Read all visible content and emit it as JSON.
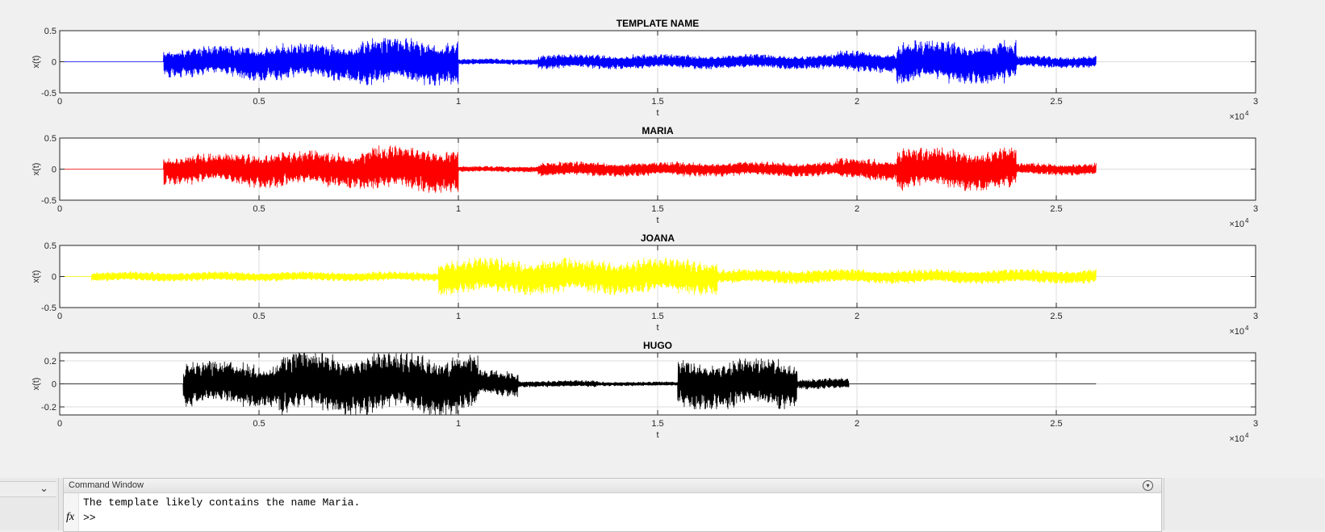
{
  "figure": {
    "colors": {
      "axes_bg": "#ffffff",
      "grid": "#dcdcdc",
      "text": "#262626"
    }
  },
  "chart_data": [
    {
      "type": "line",
      "title": "TEMPLATE NAME",
      "xlabel": "t",
      "ylabel": "x(t)",
      "xlim": [
        0,
        30000
      ],
      "ylim": [
        -0.5,
        0.5
      ],
      "xticks": [
        "0",
        "0.5",
        "1",
        "1.5",
        "2",
        "2.5",
        "3"
      ],
      "yticks": [
        "0.5",
        "0",
        "-0.5"
      ],
      "xscale_exponent_label": "×10",
      "xscale_exponent_power": "4",
      "grid": true,
      "series": [
        {
          "color": "#0000ff",
          "x_end": 26000,
          "segments": [
            {
              "x0": 0,
              "x1": 2600,
              "amplitude": 0
            },
            {
              "x0": 2600,
              "x1": 4500,
              "amplitude": 0.25
            },
            {
              "x0": 4500,
              "x1": 7500,
              "amplitude": 0.3
            },
            {
              "x0": 7500,
              "x1": 10000,
              "amplitude": 0.38
            },
            {
              "x0": 10000,
              "x1": 12000,
              "amplitude": 0.05
            },
            {
              "x0": 12000,
              "x1": 15000,
              "amplitude": 0.12
            },
            {
              "x0": 15000,
              "x1": 19500,
              "amplitude": 0.12
            },
            {
              "x0": 19500,
              "x1": 21000,
              "amplitude": 0.18
            },
            {
              "x0": 21000,
              "x1": 24000,
              "amplitude": 0.35
            },
            {
              "x0": 24000,
              "x1": 26000,
              "amplitude": 0.1
            }
          ]
        }
      ]
    },
    {
      "type": "line",
      "title": "MARIA",
      "xlabel": "t",
      "ylabel": "x(t)",
      "xlim": [
        0,
        30000
      ],
      "ylim": [
        -0.5,
        0.5
      ],
      "xticks": [
        "0",
        "0.5",
        "1",
        "1.5",
        "2",
        "2.5",
        "3"
      ],
      "yticks": [
        "0.5",
        "0",
        "-0.5"
      ],
      "xscale_exponent_label": "×10",
      "xscale_exponent_power": "4",
      "grid": true,
      "series": [
        {
          "color": "#ff0000",
          "x_end": 26000,
          "segments": [
            {
              "x0": 0,
              "x1": 2600,
              "amplitude": 0
            },
            {
              "x0": 2600,
              "x1": 4500,
              "amplitude": 0.25
            },
            {
              "x0": 4500,
              "x1": 7500,
              "amplitude": 0.3
            },
            {
              "x0": 7500,
              "x1": 10000,
              "amplitude": 0.38
            },
            {
              "x0": 10000,
              "x1": 12000,
              "amplitude": 0.05
            },
            {
              "x0": 12000,
              "x1": 15000,
              "amplitude": 0.12
            },
            {
              "x0": 15000,
              "x1": 19500,
              "amplitude": 0.12
            },
            {
              "x0": 19500,
              "x1": 21000,
              "amplitude": 0.18
            },
            {
              "x0": 21000,
              "x1": 24000,
              "amplitude": 0.35
            },
            {
              "x0": 24000,
              "x1": 26000,
              "amplitude": 0.1
            }
          ]
        }
      ]
    },
    {
      "type": "line",
      "title": "JOANA",
      "xlabel": "t",
      "ylabel": "x(t)",
      "xlim": [
        0,
        30000
      ],
      "ylim": [
        -0.5,
        0.5
      ],
      "xticks": [
        "0",
        "0.5",
        "1",
        "1.5",
        "2",
        "2.5",
        "3"
      ],
      "yticks": [
        "0.5",
        "0",
        "-0.5"
      ],
      "xscale_exponent_label": "×10",
      "xscale_exponent_power": "4",
      "grid": true,
      "series": [
        {
          "color": "#ffff00",
          "x_end": 26000,
          "segments": [
            {
              "x0": 0,
              "x1": 800,
              "amplitude": 0
            },
            {
              "x0": 800,
              "x1": 6000,
              "amplitude": 0.08
            },
            {
              "x0": 6000,
              "x1": 9500,
              "amplitude": 0.08
            },
            {
              "x0": 9500,
              "x1": 16500,
              "amplitude": 0.3
            },
            {
              "x0": 16500,
              "x1": 20000,
              "amplitude": 0.12
            },
            {
              "x0": 20000,
              "x1": 26000,
              "amplitude": 0.12
            }
          ]
        }
      ]
    },
    {
      "type": "line",
      "title": "HUGO",
      "xlabel": "t",
      "ylabel": "x(t)",
      "xlim": [
        0,
        30000
      ],
      "ylim": [
        -0.27,
        0.27
      ],
      "xticks": [
        "0",
        "0.5",
        "1",
        "1.5",
        "2",
        "2.5",
        "3"
      ],
      "yticks": [
        "0.2",
        "0",
        "-0.2"
      ],
      "ytick_values": [
        0.2,
        0,
        -0.2
      ],
      "xscale_exponent_label": "×10",
      "xscale_exponent_power": "4",
      "grid": true,
      "series": [
        {
          "color": "#000000",
          "x_end": 26000,
          "segments": [
            {
              "x0": 0,
              "x1": 3100,
              "amplitude": 0
            },
            {
              "x0": 3100,
              "x1": 5500,
              "amplitude": 0.2
            },
            {
              "x0": 5500,
              "x1": 10500,
              "amplitude": 0.27
            },
            {
              "x0": 10500,
              "x1": 11500,
              "amplitude": 0.12
            },
            {
              "x0": 11500,
              "x1": 13500,
              "amplitude": 0.03
            },
            {
              "x0": 13500,
              "x1": 15500,
              "amplitude": 0.02
            },
            {
              "x0": 15500,
              "x1": 18500,
              "amplitude": 0.22
            },
            {
              "x0": 18500,
              "x1": 19800,
              "amplitude": 0.05
            },
            {
              "x0": 19800,
              "x1": 26000,
              "amplitude": 0
            }
          ]
        }
      ]
    }
  ],
  "command_window": {
    "title": "Command Window",
    "menu_icon": "expand-circle-icon",
    "output_line": "The template likely contains the name Maria.",
    "fx_label": "fx",
    "prompt": ">>"
  },
  "left_pane": {
    "chevron": "⌄"
  }
}
